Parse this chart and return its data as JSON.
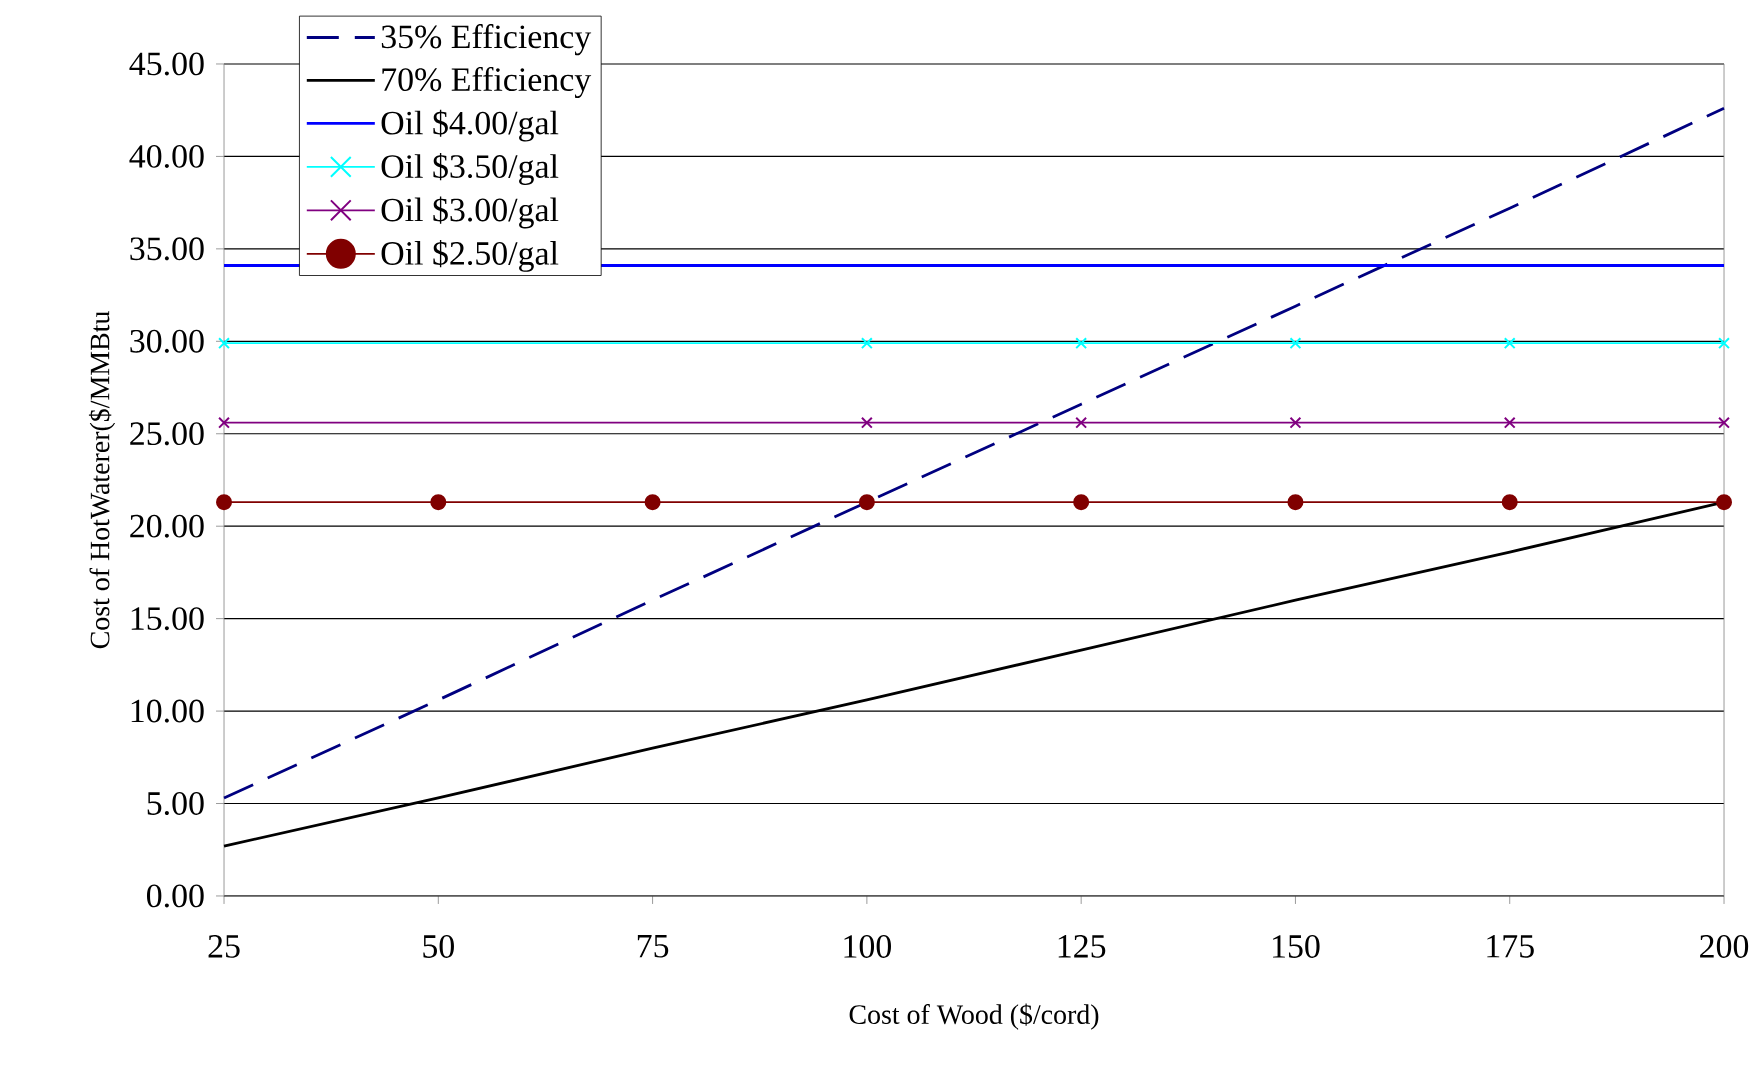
{
  "chart_data": {
    "type": "line",
    "xlabel": "Cost of Wood ($/cord)",
    "ylabel": "Cost of HotWaterer($/MMBtu",
    "x": [
      25,
      50,
      75,
      100,
      125,
      150,
      175,
      200
    ],
    "xlim": [
      25,
      200
    ],
    "xticks": [
      25,
      50,
      75,
      100,
      125,
      150,
      175,
      200
    ],
    "ylim": [
      0,
      45
    ],
    "yticks": [
      {
        "value": 0,
        "label": "0.00"
      },
      {
        "value": 5,
        "label": "5.00"
      },
      {
        "value": 10,
        "label": "10.00"
      },
      {
        "value": 15,
        "label": "15.00"
      },
      {
        "value": 20,
        "label": "20.00"
      },
      {
        "value": 25,
        "label": "25.00"
      },
      {
        "value": 30,
        "label": "30.00"
      },
      {
        "value": 35,
        "label": "35.00"
      },
      {
        "value": 40,
        "label": "40.00"
      },
      {
        "value": 45,
        "label": "45.00"
      }
    ],
    "grid": "y",
    "legend": "top left",
    "series": [
      {
        "name": "35% Efficiency",
        "color": "#000080",
        "line_style": "dashed",
        "marker": "none",
        "values": [
          5.3,
          10.6,
          16.0,
          21.3,
          26.6,
          31.9,
          37.2,
          42.6
        ]
      },
      {
        "name": "70% Efficiency",
        "color": "#000000",
        "line_style": "solid",
        "marker": "none",
        "values": [
          2.7,
          5.3,
          8.0,
          10.6,
          13.3,
          16.0,
          18.6,
          21.3
        ]
      },
      {
        "name": "Oil $4.00/gal",
        "color": "#0000ff",
        "line_style": "solid",
        "marker": "none",
        "values": [
          34.1,
          null,
          null,
          34.1,
          34.1,
          34.1,
          34.1,
          34.1
        ]
      },
      {
        "name": "Oil $3.50/gal",
        "color": "#00ffff",
        "line_style": "solid",
        "marker": "cross",
        "values": [
          29.9,
          null,
          null,
          29.9,
          29.9,
          29.9,
          29.9,
          29.9
        ]
      },
      {
        "name": "Oil $3.00/gal",
        "color": "#800080",
        "line_style": "solid",
        "marker": "cross",
        "values": [
          25.6,
          null,
          null,
          25.6,
          25.6,
          25.6,
          25.6,
          25.6
        ]
      },
      {
        "name": "Oil $2.50/gal",
        "color": "#800000",
        "line_style": "solid",
        "marker": "circle",
        "values": [
          21.3,
          21.3,
          21.3,
          21.3,
          21.3,
          21.3,
          21.3,
          21.3
        ]
      }
    ]
  }
}
